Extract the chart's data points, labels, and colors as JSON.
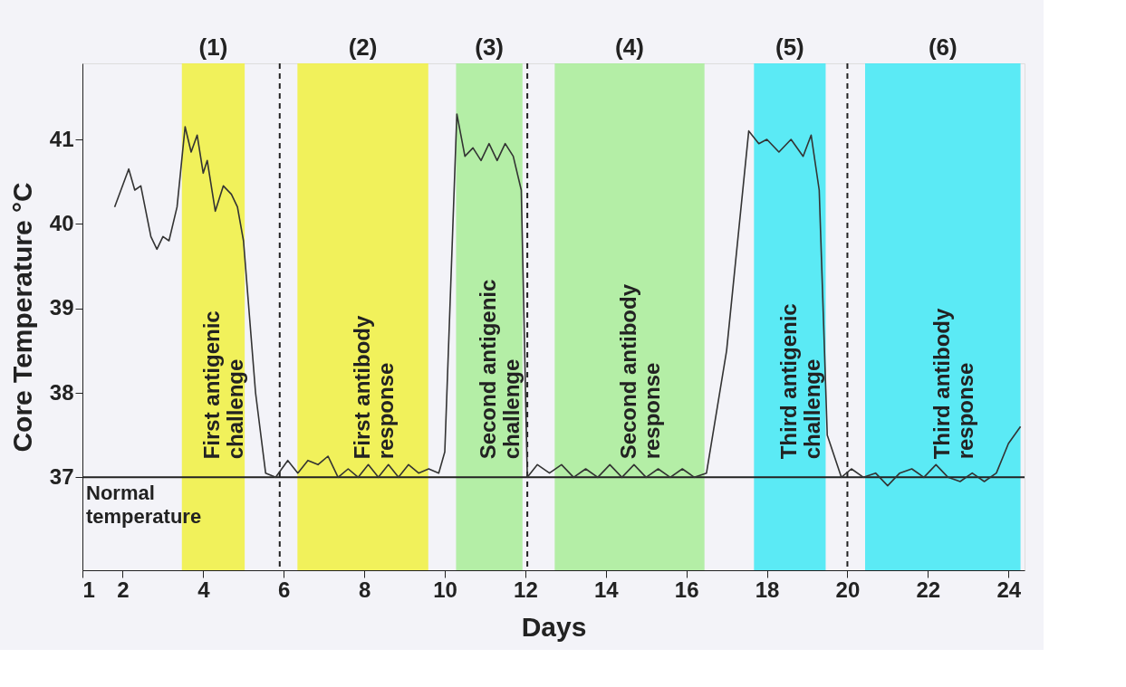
{
  "chart_data": {
    "type": "line",
    "xlabel": "Days",
    "ylabel": "Core Temperature °C",
    "xlim": [
      1,
      24.4
    ],
    "xticks": [
      1,
      2,
      4,
      6,
      8,
      10,
      12,
      14,
      16,
      18,
      20,
      22,
      24
    ],
    "ylim": [
      35.9,
      41.9
    ],
    "yticks": [
      37,
      38,
      39,
      40,
      41
    ],
    "grid": false,
    "marker": "none",
    "line_style": "solid",
    "series": [
      {
        "color": "#333333",
        "x": [
          1.8,
          2.15,
          2.3,
          2.45,
          2.7,
          2.85,
          3.0,
          3.15,
          3.35,
          3.55,
          3.7,
          3.85,
          4.0,
          4.1,
          4.3,
          4.5,
          4.7,
          4.85,
          5.0,
          5.3,
          5.55,
          5.8,
          6.1,
          6.35,
          6.6,
          6.85,
          7.1,
          7.35,
          7.6,
          7.85,
          8.1,
          8.35,
          8.6,
          8.85,
          9.1,
          9.35,
          9.6,
          9.85,
          10.0,
          10.3,
          10.5,
          10.7,
          10.9,
          11.1,
          11.3,
          11.5,
          11.7,
          11.9,
          12.05,
          12.3,
          12.6,
          12.9,
          13.2,
          13.5,
          13.8,
          14.1,
          14.4,
          14.7,
          15.0,
          15.3,
          15.6,
          15.9,
          16.2,
          16.5,
          17.0,
          17.55,
          17.8,
          18.0,
          18.3,
          18.6,
          18.9,
          19.1,
          19.3,
          19.5,
          19.85,
          20.1,
          20.4,
          20.7,
          21.0,
          21.3,
          21.6,
          21.9,
          22.2,
          22.5,
          22.8,
          23.1,
          23.4,
          23.7,
          24.0,
          24.3
        ],
        "values": [
          40.2,
          40.65,
          40.4,
          40.45,
          39.85,
          39.7,
          39.85,
          39.8,
          40.2,
          41.15,
          40.85,
          41.05,
          40.6,
          40.75,
          40.15,
          40.45,
          40.35,
          40.2,
          39.8,
          38.0,
          37.05,
          37.0,
          37.2,
          37.05,
          37.2,
          37.15,
          37.25,
          37.0,
          37.1,
          37.0,
          37.15,
          37.0,
          37.15,
          37.0,
          37.15,
          37.05,
          37.1,
          37.05,
          37.3,
          41.3,
          40.8,
          40.9,
          40.75,
          40.95,
          40.75,
          40.95,
          40.8,
          40.4,
          37.0,
          37.15,
          37.05,
          37.15,
          37.0,
          37.1,
          37.0,
          37.15,
          37.0,
          37.15,
          37.0,
          37.1,
          37.0,
          37.1,
          37.0,
          37.05,
          38.5,
          41.1,
          40.95,
          41.0,
          40.85,
          41.0,
          40.8,
          41.05,
          40.4,
          37.5,
          37.0,
          37.1,
          37.0,
          37.05,
          36.9,
          37.05,
          37.1,
          37.0,
          37.15,
          37.0,
          36.95,
          37.05,
          36.95,
          37.05,
          37.4,
          37.6
        ]
      }
    ],
    "ref_lines": [
      {
        "axis": "y",
        "value": 37,
        "label": "Normal\ntemperature",
        "color": "#222222",
        "line_style": "solid"
      },
      {
        "axis": "x",
        "value": 5.9,
        "color": "#222222",
        "line_style": "dashed"
      },
      {
        "axis": "x",
        "value": 12.05,
        "color": "#222222",
        "line_style": "dashed"
      },
      {
        "axis": "x",
        "value": 20.0,
        "color": "#222222",
        "line_style": "dashed"
      }
    ],
    "bands": [
      {
        "axis": "x",
        "from": 3.47,
        "to": 5.03,
        "label": "First antigenic\nchallenge",
        "color": "#f0f040"
      },
      {
        "axis": "x",
        "from": 6.34,
        "to": 9.59,
        "label": "First antibody\nresponse",
        "color": "#f0f040"
      },
      {
        "axis": "x",
        "from": 10.28,
        "to": 11.93,
        "label": "Second antigenic\nchallenge",
        "color": "#a8ec98"
      },
      {
        "axis": "x",
        "from": 12.73,
        "to": 16.45,
        "label": "Second antibody\nresponse",
        "color": "#a8ec98"
      },
      {
        "axis": "x",
        "from": 17.68,
        "to": 19.46,
        "label": "Third antigenic\nchallenge",
        "color": "#40e8f5"
      },
      {
        "axis": "x",
        "from": 20.44,
        "to": 24.3,
        "label": "Third antibody\nresponse",
        "color": "#40e8f5"
      }
    ],
    "annotations": [
      "(1)",
      "(2)",
      "(3)",
      "(4)",
      "(5)",
      "(6)"
    ]
  }
}
